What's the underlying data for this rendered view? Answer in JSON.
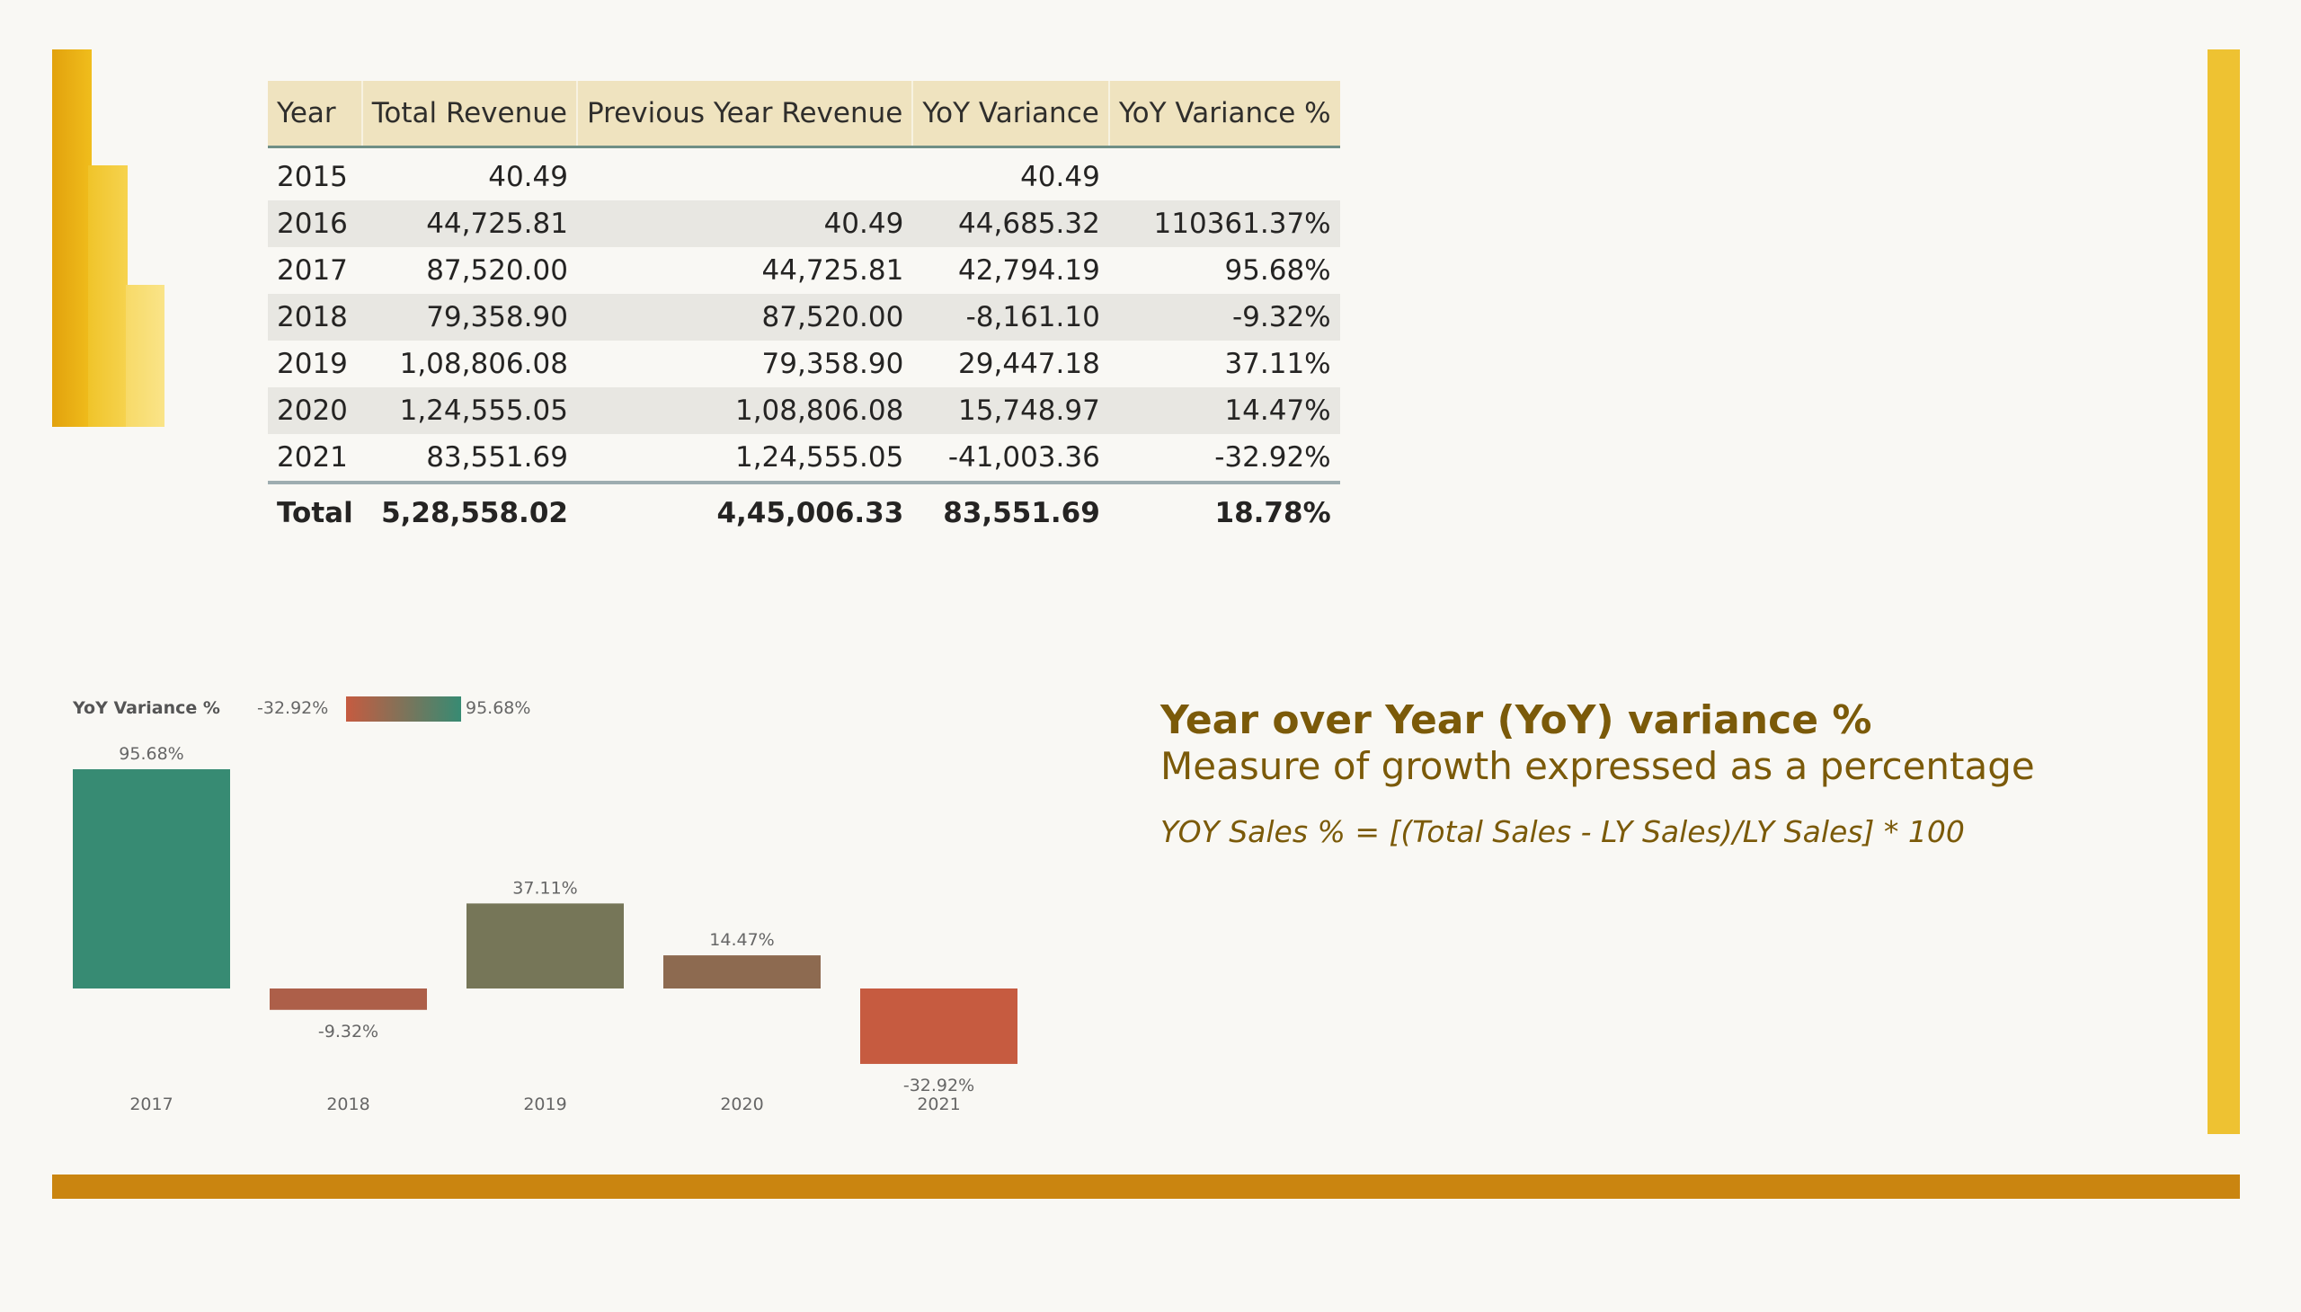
{
  "colors": {
    "accent_yellow": "#eec232",
    "bottom_bar": "#ca8510",
    "title_brown": "#7b5a09",
    "gradient_low": "#c65b40",
    "gradient_high": "#378b73"
  },
  "table": {
    "headers": [
      "Year",
      "Total Revenue",
      "Previous Year Revenue",
      "YoY Variance",
      "YoY Variance %"
    ],
    "rows": [
      [
        "2015",
        "40.49",
        "",
        "40.49",
        ""
      ],
      [
        "2016",
        "44,725.81",
        "40.49",
        "44,685.32",
        "110361.37%"
      ],
      [
        "2017",
        "87,520.00",
        "44,725.81",
        "42,794.19",
        "95.68%"
      ],
      [
        "2018",
        "79,358.90",
        "87,520.00",
        "-8,161.10",
        "-9.32%"
      ],
      [
        "2019",
        "1,08,806.08",
        "79,358.90",
        "29,447.18",
        "37.11%"
      ],
      [
        "2020",
        "1,24,555.05",
        "1,08,806.08",
        "15,748.97",
        "14.47%"
      ],
      [
        "2021",
        "83,551.69",
        "1,24,555.05",
        "-41,003.36",
        "-32.92%"
      ]
    ],
    "total": [
      "Total",
      "5,28,558.02",
      "4,45,006.33",
      "83,551.69",
      "18.78%"
    ]
  },
  "chart_data": {
    "type": "bar",
    "categories": [
      "2017",
      "2018",
      "2019",
      "2020",
      "2021"
    ],
    "values": [
      95.68,
      -9.32,
      37.11,
      14.47,
      -32.92
    ],
    "data_labels": [
      "95.68%",
      "-9.32%",
      "37.11%",
      "14.47%",
      "-32.92%"
    ],
    "colors": [
      "#378b73",
      "#ad5f49",
      "#767658",
      "#8d6a50",
      "#c65b40"
    ],
    "legend": {
      "title": "YoY Variance %",
      "min_label": "-32.92%",
      "max_label": "95.68%",
      "type": "gradient",
      "placement": "top-left"
    },
    "ylim": [
      -32.92,
      95.68
    ],
    "grid": false,
    "xlabel": "",
    "ylabel": ""
  },
  "text": {
    "headline": "Year over Year (YoY) variance %",
    "subheadline": "Measure of growth expressed as a percentage",
    "formula": "YOY Sales % = [(Total Sales - LY Sales)/LY Sales] * 100"
  }
}
